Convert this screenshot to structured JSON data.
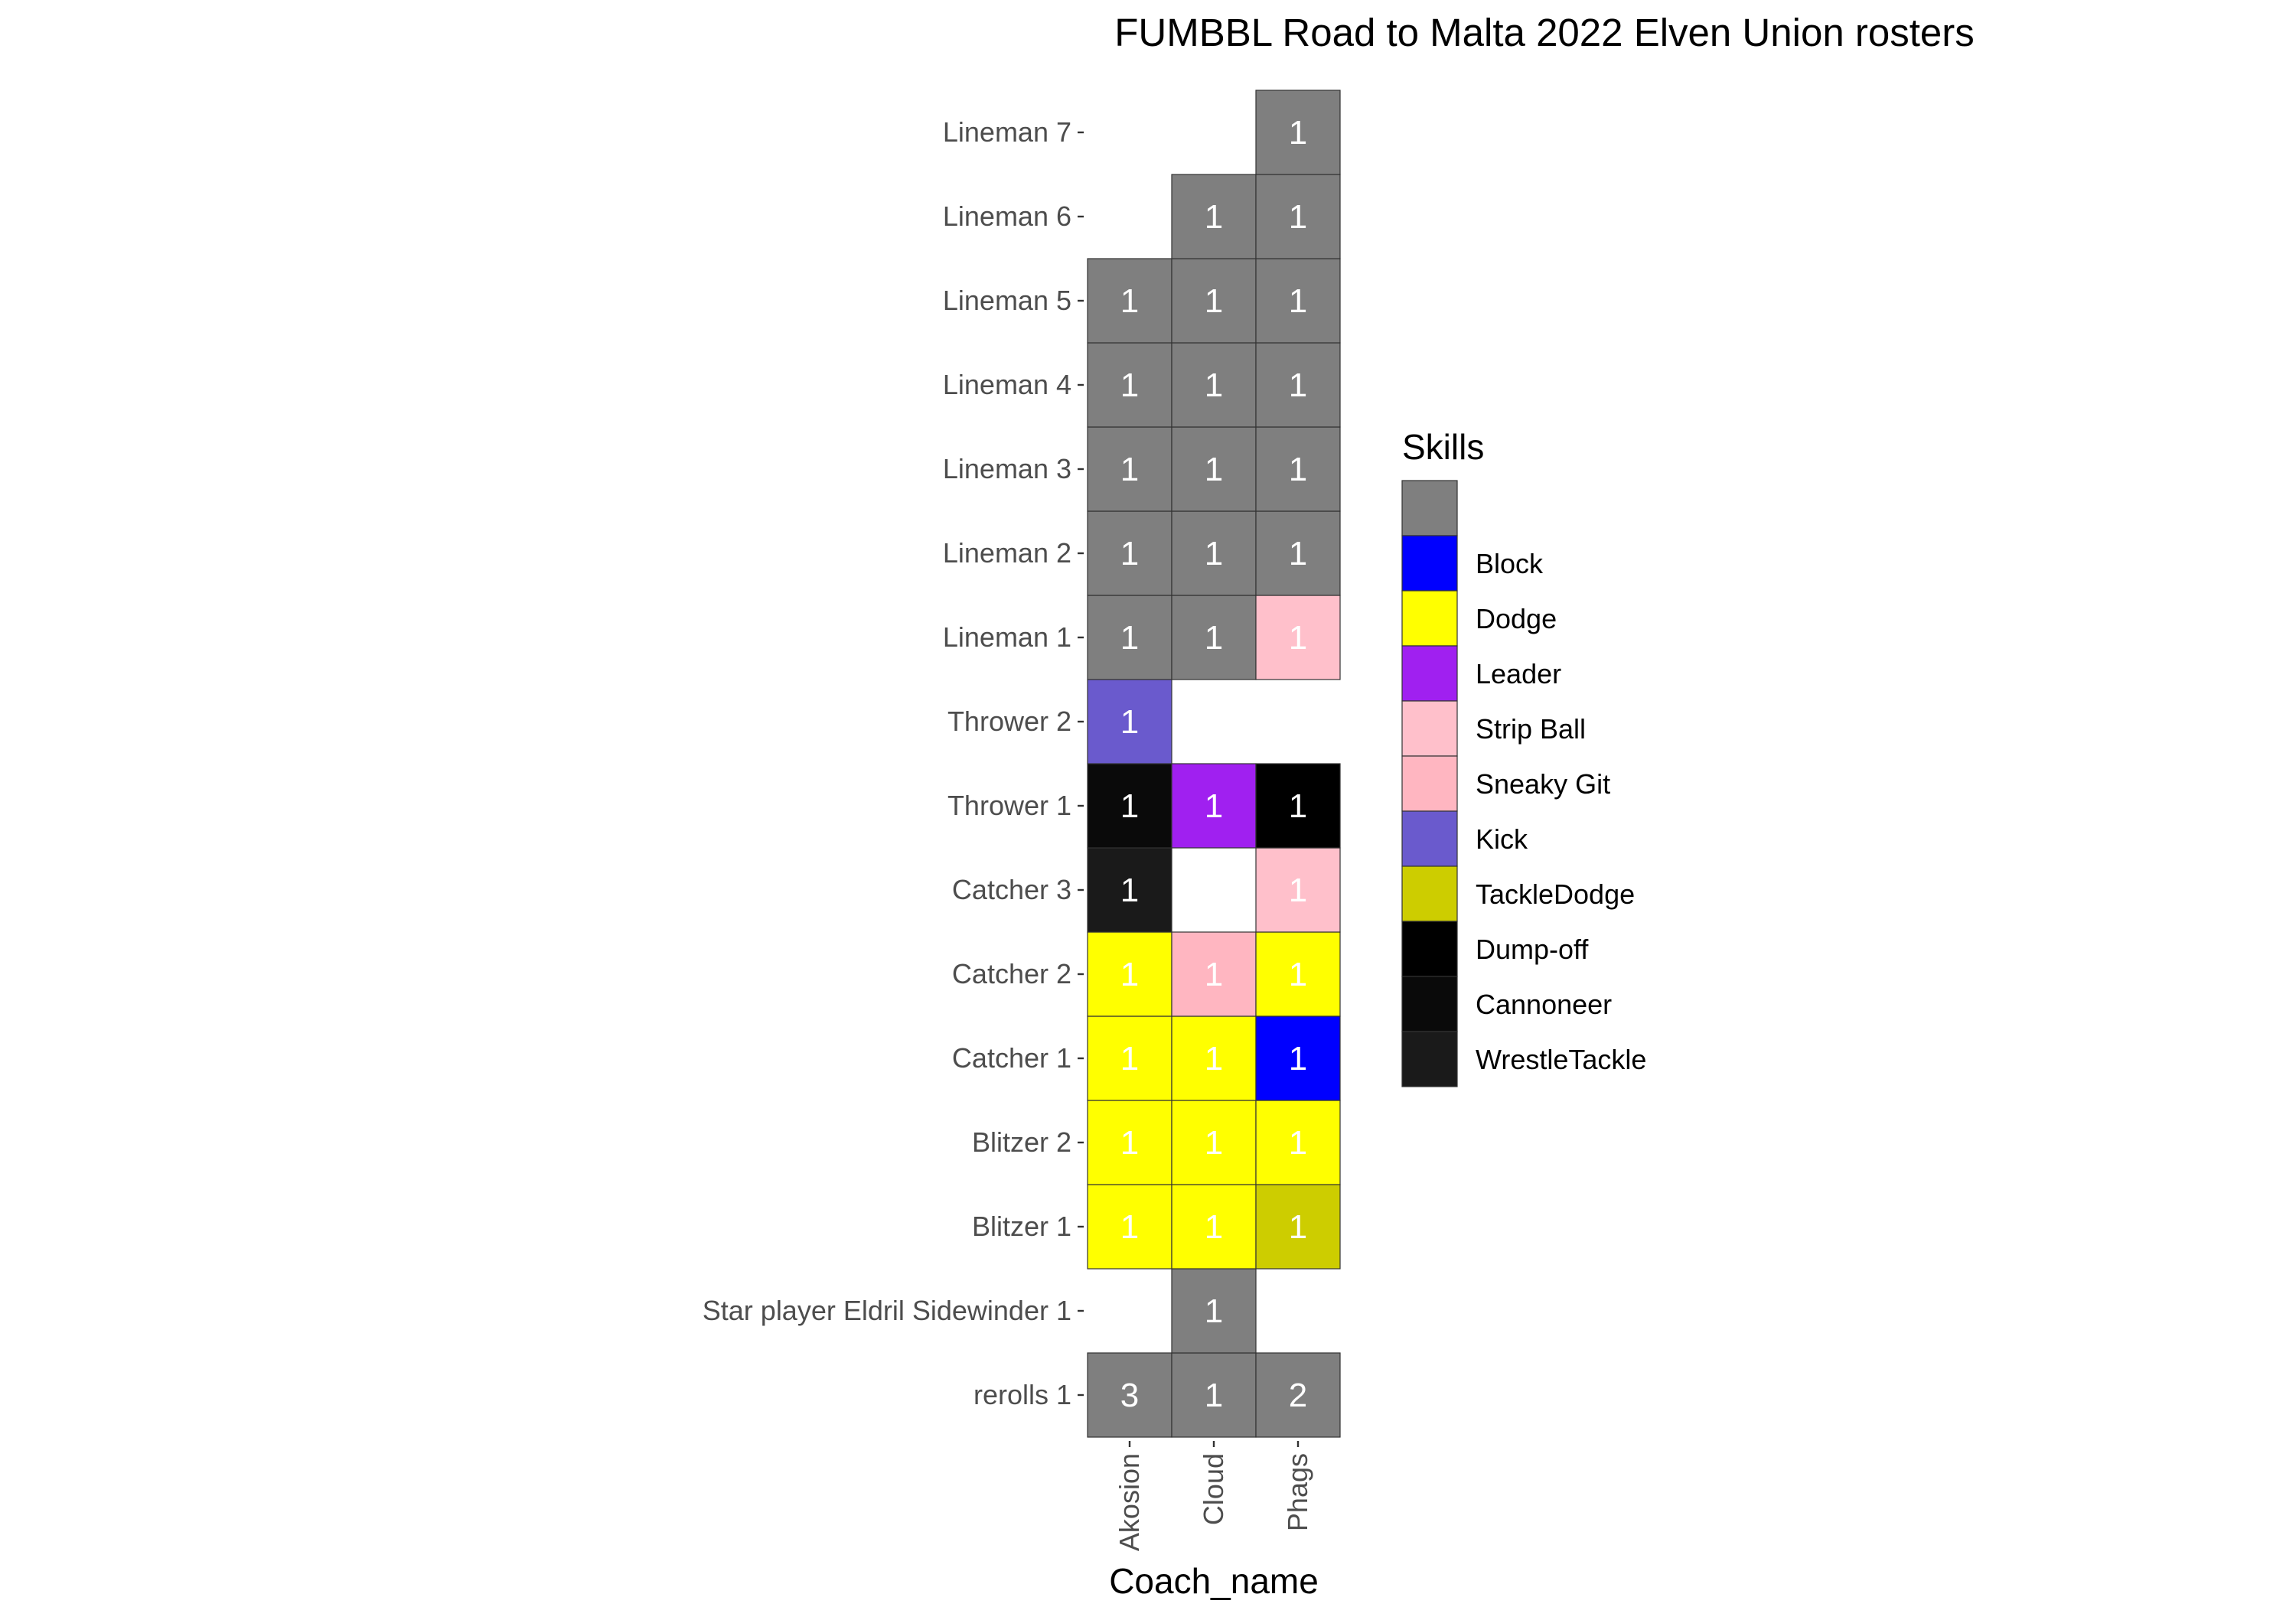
{
  "chart_data": {
    "type": "heatmap",
    "title": "FUMBBL Road to Malta 2022 Elven Union rosters",
    "xlabel": "Coach_name",
    "ylabel": "",
    "x_categories": [
      "Akosion",
      "Cloud",
      "Phags"
    ],
    "y_categories": [
      "rerolls 1",
      "Star player Eldril Sidewinder 1",
      "Blitzer 1",
      "Blitzer 2",
      "Catcher 1",
      "Catcher 2",
      "Catcher 3",
      "Thrower 1",
      "Thrower 2",
      "Lineman 1",
      "Lineman 2",
      "Lineman 3",
      "Lineman 4",
      "Lineman 5",
      "Lineman 6",
      "Lineman 7"
    ],
    "legend": {
      "title": "Skills",
      "placement": "right",
      "entries": [
        {
          "label": "",
          "color": "#7f7f7f"
        },
        {
          "label": "Block",
          "color": "#0000ff"
        },
        {
          "label": "Dodge",
          "color": "#ffff00"
        },
        {
          "label": "Leader",
          "color": "#a020f0"
        },
        {
          "label": "Strip Ball",
          "color": "#ffc0cb"
        },
        {
          "label": "Sneaky Git",
          "color": "#ffb6c1"
        },
        {
          "label": "Kick",
          "color": "#6a5acd"
        },
        {
          "label": "TackleDodge",
          "color": "#cdcd00"
        },
        {
          "label": "Dump-off",
          "color": "#000000"
        },
        {
          "label": "Cannoneer",
          "color": "#0a0a0a"
        },
        {
          "label": "WrestleTackle",
          "color": "#1a1a1a"
        }
      ]
    },
    "cells": [
      {
        "x": "Akosion",
        "y": "rerolls 1",
        "value": 3,
        "skill": ""
      },
      {
        "x": "Cloud",
        "y": "rerolls 1",
        "value": 1,
        "skill": ""
      },
      {
        "x": "Phags",
        "y": "rerolls 1",
        "value": 2,
        "skill": ""
      },
      {
        "x": "Cloud",
        "y": "Star player Eldril Sidewinder 1",
        "value": 1,
        "skill": ""
      },
      {
        "x": "Akosion",
        "y": "Blitzer 1",
        "value": 1,
        "skill": "Dodge"
      },
      {
        "x": "Cloud",
        "y": "Blitzer 1",
        "value": 1,
        "skill": "Dodge"
      },
      {
        "x": "Phags",
        "y": "Blitzer 1",
        "value": 1,
        "skill": "TackleDodge"
      },
      {
        "x": "Akosion",
        "y": "Blitzer 2",
        "value": 1,
        "skill": "Dodge"
      },
      {
        "x": "Cloud",
        "y": "Blitzer 2",
        "value": 1,
        "skill": "Dodge"
      },
      {
        "x": "Phags",
        "y": "Blitzer 2",
        "value": 1,
        "skill": "Dodge"
      },
      {
        "x": "Akosion",
        "y": "Catcher 1",
        "value": 1,
        "skill": "Dodge"
      },
      {
        "x": "Cloud",
        "y": "Catcher 1",
        "value": 1,
        "skill": "Dodge"
      },
      {
        "x": "Phags",
        "y": "Catcher 1",
        "value": 1,
        "skill": "Block"
      },
      {
        "x": "Akosion",
        "y": "Catcher 2",
        "value": 1,
        "skill": "Dodge"
      },
      {
        "x": "Cloud",
        "y": "Catcher 2",
        "value": 1,
        "skill": "Sneaky Git"
      },
      {
        "x": "Phags",
        "y": "Catcher 2",
        "value": 1,
        "skill": "Dodge"
      },
      {
        "x": "Akosion",
        "y": "Catcher 3",
        "value": 1,
        "skill": "WrestleTackle"
      },
      {
        "x": "Phags",
        "y": "Catcher 3",
        "value": 1,
        "skill": "Strip Ball"
      },
      {
        "x": "Akosion",
        "y": "Thrower 1",
        "value": 1,
        "skill": "Cannoneer"
      },
      {
        "x": "Cloud",
        "y": "Thrower 1",
        "value": 1,
        "skill": "Leader"
      },
      {
        "x": "Phags",
        "y": "Thrower 1",
        "value": 1,
        "skill": "Dump-off"
      },
      {
        "x": "Akosion",
        "y": "Thrower 2",
        "value": 1,
        "skill": "Kick"
      },
      {
        "x": "Akosion",
        "y": "Lineman 1",
        "value": 1,
        "skill": ""
      },
      {
        "x": "Cloud",
        "y": "Lineman 1",
        "value": 1,
        "skill": ""
      },
      {
        "x": "Phags",
        "y": "Lineman 1",
        "value": 1,
        "skill": "Strip Ball"
      },
      {
        "x": "Akosion",
        "y": "Lineman 2",
        "value": 1,
        "skill": ""
      },
      {
        "x": "Cloud",
        "y": "Lineman 2",
        "value": 1,
        "skill": ""
      },
      {
        "x": "Phags",
        "y": "Lineman 2",
        "value": 1,
        "skill": ""
      },
      {
        "x": "Akosion",
        "y": "Lineman 3",
        "value": 1,
        "skill": ""
      },
      {
        "x": "Cloud",
        "y": "Lineman 3",
        "value": 1,
        "skill": ""
      },
      {
        "x": "Phags",
        "y": "Lineman 3",
        "value": 1,
        "skill": ""
      },
      {
        "x": "Akosion",
        "y": "Lineman 4",
        "value": 1,
        "skill": ""
      },
      {
        "x": "Cloud",
        "y": "Lineman 4",
        "value": 1,
        "skill": ""
      },
      {
        "x": "Phags",
        "y": "Lineman 4",
        "value": 1,
        "skill": ""
      },
      {
        "x": "Akosion",
        "y": "Lineman 5",
        "value": 1,
        "skill": ""
      },
      {
        "x": "Cloud",
        "y": "Lineman 5",
        "value": 1,
        "skill": ""
      },
      {
        "x": "Phags",
        "y": "Lineman 5",
        "value": 1,
        "skill": ""
      },
      {
        "x": "Cloud",
        "y": "Lineman 6",
        "value": 1,
        "skill": ""
      },
      {
        "x": "Phags",
        "y": "Lineman 6",
        "value": 1,
        "skill": ""
      },
      {
        "x": "Phags",
        "y": "Lineman 7",
        "value": 1,
        "skill": ""
      }
    ],
    "grid": false
  }
}
